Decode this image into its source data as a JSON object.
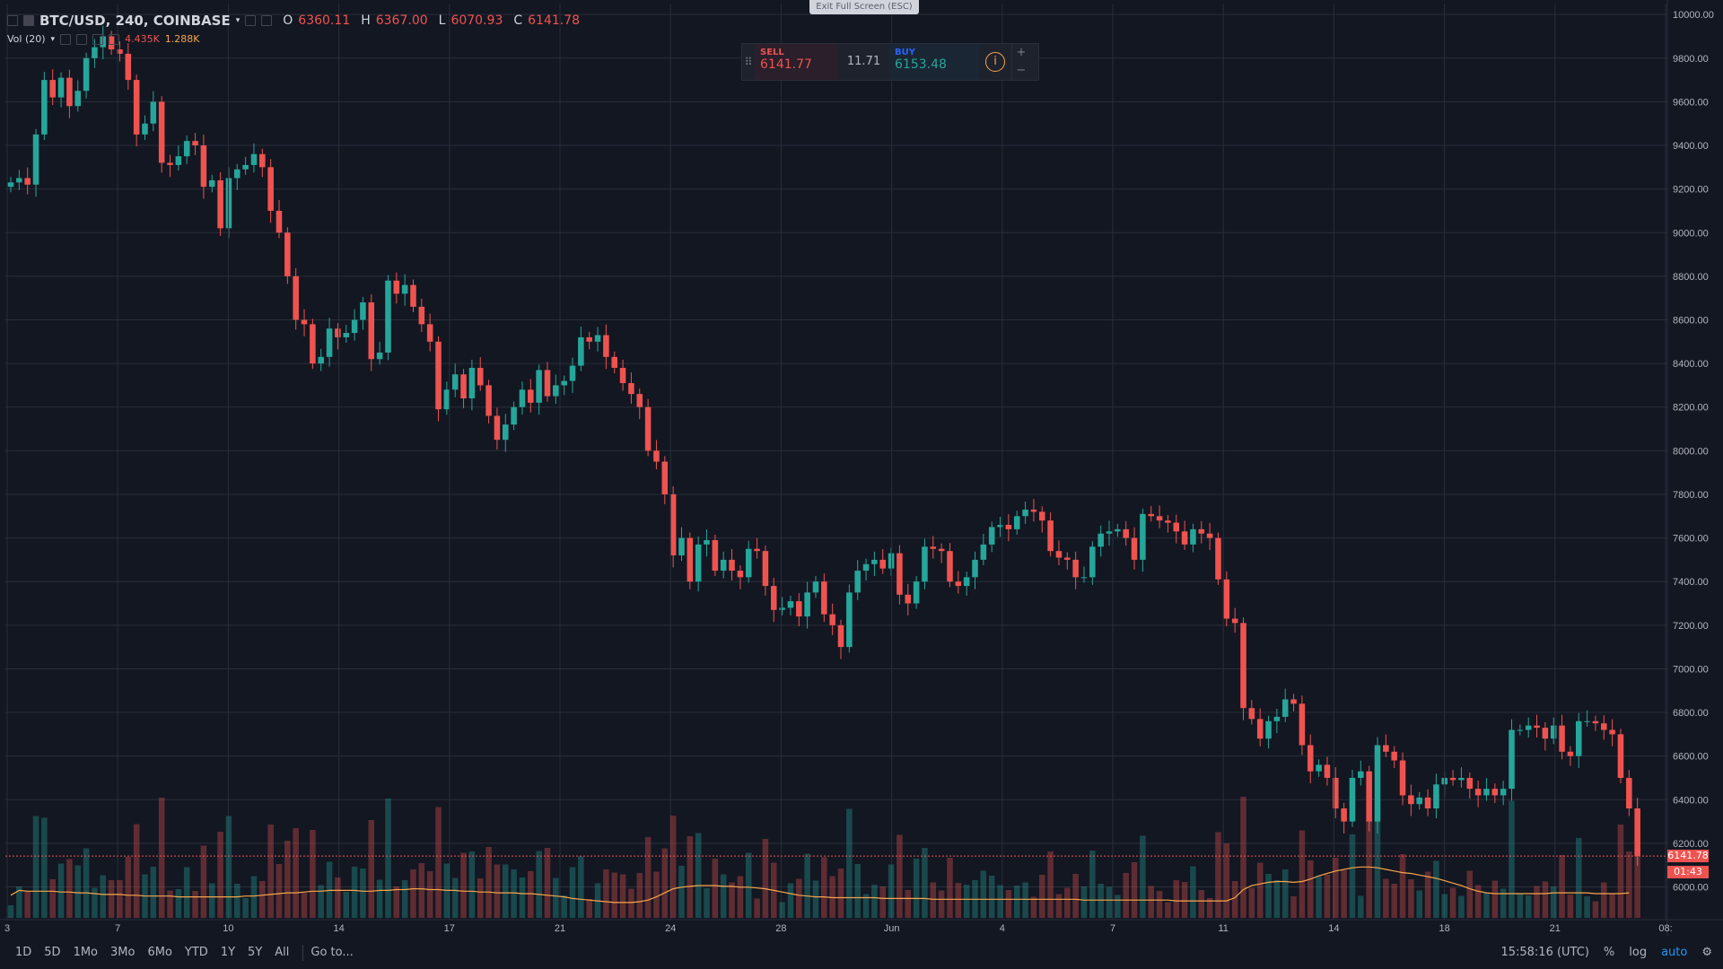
{
  "header": {
    "symbol": "BTC/USD, 240, COINBASE",
    "open_label": "O",
    "open": "6360.11",
    "high_label": "H",
    "high": "6367.00",
    "low_label": "L",
    "low": "6070.93",
    "close_label": "C",
    "close": "6141.78"
  },
  "volume_legend": {
    "label": "Vol (20)",
    "value1": "4.435K",
    "value2": "1.288K"
  },
  "exit_fullscreen": "Exit Full Screen (ESC)",
  "trade_panel": {
    "sell_label": "SELL",
    "sell_price": "6141.77",
    "spread": "11.71",
    "buy_label": "BUY",
    "buy_price": "6153.48",
    "plus": "+",
    "minus": "−",
    "info": "i"
  },
  "bottom_bar": {
    "ranges": [
      "1D",
      "5D",
      "1Mo",
      "3Mo",
      "6Mo",
      "YTD",
      "1Y",
      "5Y",
      "All"
    ],
    "goto": "Go to...",
    "time": "15:58:16 (UTC)",
    "percent": "%",
    "log": "log",
    "auto": "auto"
  },
  "price_labels": {
    "last": "6141.78",
    "countdown": "01:43"
  },
  "colors": {
    "up": "#26a69a",
    "down": "#ef5350",
    "bg": "#131722",
    "grid": "#2a2e39",
    "ma": "#f7a54a"
  },
  "chart_data": {
    "type": "candlestick",
    "x_ticks": [
      "3",
      "7",
      "10",
      "14",
      "17",
      "21",
      "24",
      "28",
      "Jun",
      "4",
      "7",
      "11",
      "14",
      "18",
      "21",
      "08:"
    ],
    "y_ticks": [
      6000,
      6200,
      6400,
      6600,
      6800,
      7000,
      7200,
      7400,
      7600,
      7800,
      8000,
      8200,
      8400,
      8600,
      8800,
      9000,
      9200,
      9400,
      9600,
      9800,
      10000
    ],
    "ylim": [
      5850,
      10050
    ],
    "grid": true,
    "closes": [
      9230,
      9250,
      9220,
      9450,
      9700,
      9620,
      9710,
      9580,
      9650,
      9800,
      9850,
      9900,
      9840,
      9820,
      9700,
      9450,
      9500,
      9600,
      9320,
      9310,
      9350,
      9420,
      9400,
      9210,
      9240,
      9020,
      9250,
      9290,
      9310,
      9360,
      9300,
      9100,
      9000,
      8800,
      8600,
      8580,
      8400,
      8430,
      8560,
      8520,
      8540,
      8600,
      8680,
      8420,
      8450,
      8780,
      8720,
      8760,
      8660,
      8580,
      8500,
      8190,
      8280,
      8350,
      8240,
      8380,
      8300,
      8160,
      8050,
      8120,
      8200,
      8280,
      8220,
      8370,
      8250,
      8300,
      8320,
      8390,
      8520,
      8500,
      8530,
      8430,
      8380,
      8310,
      8260,
      8200,
      8000,
      7950,
      7800,
      7520,
      7600,
      7400,
      7570,
      7590,
      7450,
      7500,
      7450,
      7420,
      7550,
      7540,
      7380,
      7270,
      7280,
      7310,
      7240,
      7350,
      7400,
      7250,
      7200,
      7100,
      7350,
      7450,
      7480,
      7500,
      7460,
      7530,
      7340,
      7300,
      7400,
      7560,
      7550,
      7540,
      7400,
      7380,
      7420,
      7500,
      7570,
      7650,
      7660,
      7640,
      7700,
      7730,
      7720,
      7680,
      7540,
      7510,
      7500,
      7420,
      7420,
      7560,
      7620,
      7630,
      7640,
      7600,
      7500,
      7710,
      7700,
      7680,
      7670,
      7630,
      7570,
      7640,
      7620,
      7600,
      7410,
      7230,
      7210,
      6820,
      6770,
      6680,
      6760,
      6780,
      6860,
      6840,
      6650,
      6530,
      6560,
      6500,
      6360,
      6300,
      6500,
      6530,
      6300,
      6650,
      6620,
      6580,
      6420,
      6380,
      6410,
      6360,
      6470,
      6500,
      6490,
      6500,
      6450,
      6420,
      6450,
      6420,
      6450,
      6720,
      6720,
      6740,
      6730,
      6680,
      6740,
      6620,
      6600,
      6760,
      6760,
      6750,
      6720,
      6700,
      6500,
      6360,
      6141.78
    ],
    "volume_ma": [
      0.28,
      0.34,
      0.33,
      0.33,
      0.33,
      0.33,
      0.32,
      0.32,
      0.31,
      0.31,
      0.3,
      0.29,
      0.29,
      0.29,
      0.28,
      0.28,
      0.27,
      0.27,
      0.27,
      0.27,
      0.26,
      0.26,
      0.26,
      0.26,
      0.26,
      0.26,
      0.26,
      0.26,
      0.27,
      0.27,
      0.28,
      0.29,
      0.3,
      0.31,
      0.31,
      0.32,
      0.33,
      0.33,
      0.34,
      0.34,
      0.34,
      0.34,
      0.33,
      0.33,
      0.34,
      0.34,
      0.35,
      0.35,
      0.36,
      0.36,
      0.35,
      0.35,
      0.34,
      0.34,
      0.33,
      0.33,
      0.32,
      0.32,
      0.31,
      0.31,
      0.31,
      0.3,
      0.3,
      0.29,
      0.28,
      0.27,
      0.26,
      0.24,
      0.23,
      0.22,
      0.21,
      0.2,
      0.19,
      0.19,
      0.19,
      0.2,
      0.22,
      0.26,
      0.31,
      0.36,
      0.38,
      0.39,
      0.4,
      0.4,
      0.4,
      0.39,
      0.39,
      0.38,
      0.38,
      0.37,
      0.36,
      0.34,
      0.32,
      0.3,
      0.28,
      0.27,
      0.26,
      0.26,
      0.25,
      0.25,
      0.25,
      0.25,
      0.25,
      0.25,
      0.24,
      0.24,
      0.24,
      0.24,
      0.24,
      0.24,
      0.23,
      0.23,
      0.23,
      0.23,
      0.23,
      0.23,
      0.23,
      0.23,
      0.23,
      0.23,
      0.23,
      0.23,
      0.23,
      0.23,
      0.23,
      0.23,
      0.23,
      0.23,
      0.22,
      0.22,
      0.22,
      0.22,
      0.22,
      0.22,
      0.22,
      0.22,
      0.22,
      0.22,
      0.22,
      0.21,
      0.21,
      0.21,
      0.21,
      0.21,
      0.21,
      0.21,
      0.25,
      0.35,
      0.4,
      0.42,
      0.44,
      0.45,
      0.45,
      0.44,
      0.45,
      0.48,
      0.52,
      0.55,
      0.58,
      0.6,
      0.62,
      0.63,
      0.63,
      0.62,
      0.6,
      0.58,
      0.56,
      0.55,
      0.53,
      0.51,
      0.49,
      0.46,
      0.43,
      0.4,
      0.36,
      0.33,
      0.31,
      0.3,
      0.3,
      0.3,
      0.3,
      0.3,
      0.3,
      0.3,
      0.31,
      0.31,
      0.31,
      0.31,
      0.31,
      0.3,
      0.3,
      0.3,
      0.3,
      0.31
    ],
    "last_price": 6141.78
  }
}
